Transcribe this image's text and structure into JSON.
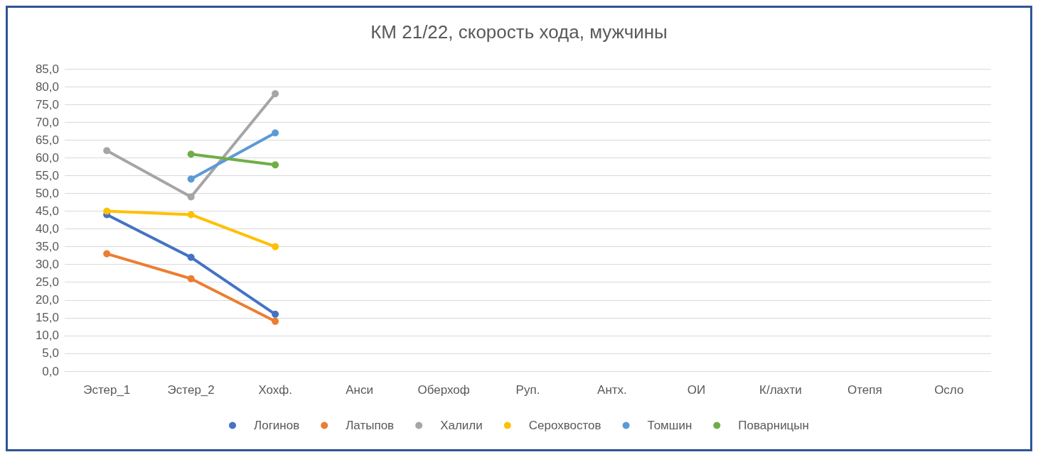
{
  "chart_data": {
    "type": "line",
    "title": "КМ 21/22, скорость хода, мужчины",
    "categories": [
      "Эстер_1",
      "Эстер_2",
      "Хохф.",
      "Анси",
      "Оберхоф",
      "Руп.",
      "Антх.",
      "ОИ",
      "К/лахти",
      "Отепя",
      "Осло"
    ],
    "series": [
      {
        "name": "Логинов",
        "color": "#4472c4",
        "values": [
          44,
          32,
          16,
          null,
          null,
          null,
          null,
          null,
          null,
          null,
          null
        ]
      },
      {
        "name": "Латыпов",
        "color": "#ed7d31",
        "values": [
          33,
          26,
          14,
          null,
          null,
          null,
          null,
          null,
          null,
          null,
          null
        ]
      },
      {
        "name": "Халили",
        "color": "#a5a5a5",
        "values": [
          62,
          49,
          78,
          null,
          null,
          null,
          null,
          null,
          null,
          null,
          null
        ]
      },
      {
        "name": "Серохвостов",
        "color": "#ffc000",
        "values": [
          45,
          44,
          35,
          null,
          null,
          null,
          null,
          null,
          null,
          null,
          null
        ]
      },
      {
        "name": "Томшин",
        "color": "#5b9bd5",
        "values": [
          null,
          54,
          67,
          null,
          null,
          null,
          null,
          null,
          null,
          null,
          null
        ]
      },
      {
        "name": "Поварницын",
        "color": "#70ad47",
        "values": [
          null,
          61,
          58,
          null,
          null,
          null,
          null,
          null,
          null,
          null,
          null
        ]
      }
    ],
    "ylim": [
      0,
      85
    ],
    "yticks": [
      {
        "value": 0,
        "label": "0,0"
      },
      {
        "value": 5,
        "label": "5,0"
      },
      {
        "value": 10,
        "label": "10,0"
      },
      {
        "value": 15,
        "label": "15,0"
      },
      {
        "value": 20,
        "label": "20,0"
      },
      {
        "value": 25,
        "label": "25,0"
      },
      {
        "value": 30,
        "label": "30,0"
      },
      {
        "value": 35,
        "label": "35,0"
      },
      {
        "value": 40,
        "label": "40,0"
      },
      {
        "value": 45,
        "label": "45,0"
      },
      {
        "value": 50,
        "label": "50,0"
      },
      {
        "value": 55,
        "label": "55,0"
      },
      {
        "value": 60,
        "label": "60,0"
      },
      {
        "value": 65,
        "label": "65,0"
      },
      {
        "value": 70,
        "label": "70,0"
      },
      {
        "value": 75,
        "label": "75,0"
      },
      {
        "value": 80,
        "label": "80,0"
      },
      {
        "value": 85,
        "label": "85,0"
      }
    ],
    "grid": "y",
    "legend": "bottom",
    "marker": "circle",
    "line_style": "solid"
  }
}
